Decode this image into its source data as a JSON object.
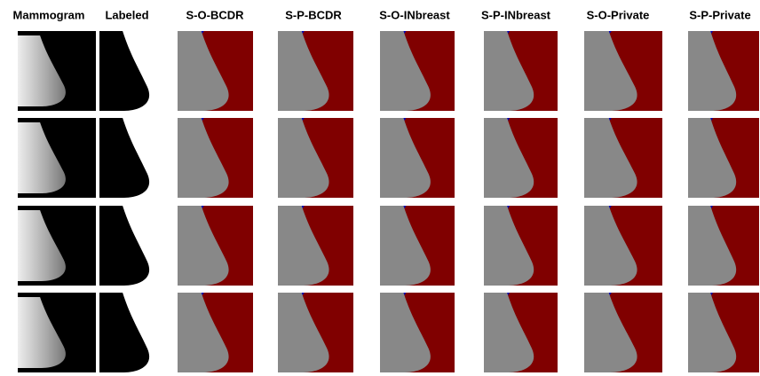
{
  "columns": [
    "Mammogram",
    "Labeled",
    "S-O-BCDR",
    "S-P-BCDR",
    "S-O-INbreast",
    "S-P-INbreast",
    "S-O-Private",
    "S-P-Private"
  ]
}
